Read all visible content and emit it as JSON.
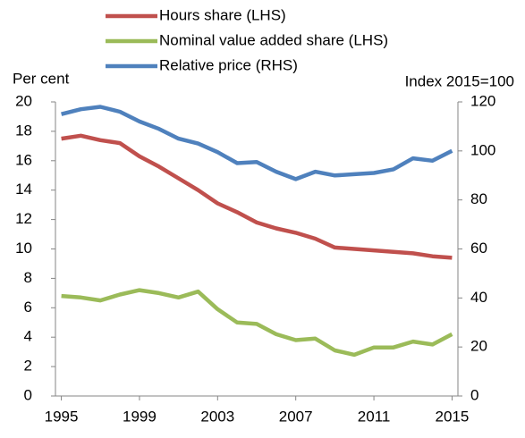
{
  "chart_data": {
    "type": "line",
    "y_label": "Per cent",
    "y2_label": "Index 2015=100",
    "x": [
      1995,
      1996,
      1997,
      1998,
      1999,
      2000,
      2001,
      2002,
      2003,
      2004,
      2005,
      2006,
      2007,
      2008,
      2009,
      2010,
      2011,
      2012,
      2013,
      2014,
      2015
    ],
    "series": [
      {
        "name": "Hours share (LHS)",
        "color": "#c0504d",
        "axis": "y",
        "values": [
          17.5,
          17.7,
          17.4,
          17.2,
          16.3,
          15.6,
          14.8,
          14.0,
          13.1,
          12.5,
          11.8,
          11.4,
          11.1,
          10.7,
          10.1,
          10.0,
          9.9,
          9.8,
          9.7,
          9.5,
          9.4
        ]
      },
      {
        "name": "Nominal value added share (LHS)",
        "color": "#9bbb59",
        "axis": "y",
        "values": [
          6.8,
          6.7,
          6.5,
          6.9,
          7.2,
          7.0,
          6.7,
          7.1,
          5.9,
          5.0,
          4.9,
          4.2,
          3.8,
          3.9,
          3.1,
          2.8,
          3.3,
          3.3,
          3.7,
          3.5,
          4.2
        ]
      },
      {
        "name": "Relative price (RHS)",
        "color": "#4f81bd",
        "axis": "y2",
        "values": [
          115,
          117,
          118,
          116,
          112,
          109,
          105,
          103,
          99.5,
          95,
          95.5,
          91.5,
          88.5,
          91.5,
          90,
          90.5,
          91,
          92.5,
          97,
          96,
          100
        ]
      }
    ],
    "xlim": [
      1994.7,
      2015.3
    ],
    "xticks": [
      1995,
      1999,
      2003,
      2007,
      2011,
      2015
    ],
    "ylim": [
      0,
      20
    ],
    "yticks": [
      0,
      2,
      4,
      6,
      8,
      10,
      12,
      14,
      16,
      18,
      20
    ],
    "y2lim": [
      0,
      120
    ],
    "y2ticks": [
      0,
      20,
      40,
      60,
      80,
      100,
      120
    ]
  }
}
